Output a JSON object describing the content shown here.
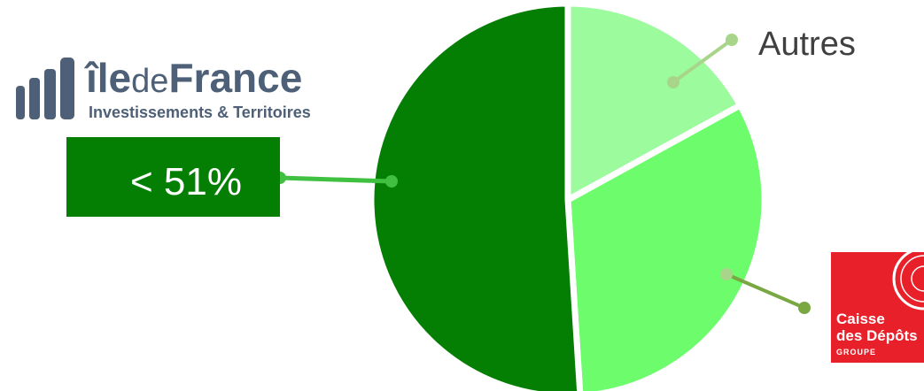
{
  "chart_data": {
    "type": "pie",
    "slices": [
      {
        "label": "Autres",
        "value": 17,
        "color": "#9bfb9d"
      },
      {
        "label": "Caisse des Dépôts Groupe",
        "value": 32,
        "color": "#6cfc6c"
      },
      {
        "label": "< 51%",
        "value": 51,
        "color": "#047f04"
      }
    ]
  },
  "logos": {
    "idf": {
      "brand_ile": "île",
      "brand_de": "de",
      "brand_france": "France",
      "tagline": "Investissements & Territoires",
      "color": "#4d6077"
    },
    "cdc": {
      "line1": "Caisse",
      "line2": "des Dépôts",
      "line3": "GROUPE",
      "color": "#e8202a"
    }
  },
  "callouts": {
    "majority_box": {
      "text": "< 51%",
      "color": "#047f04"
    },
    "autres": {
      "text": "Autres"
    }
  }
}
